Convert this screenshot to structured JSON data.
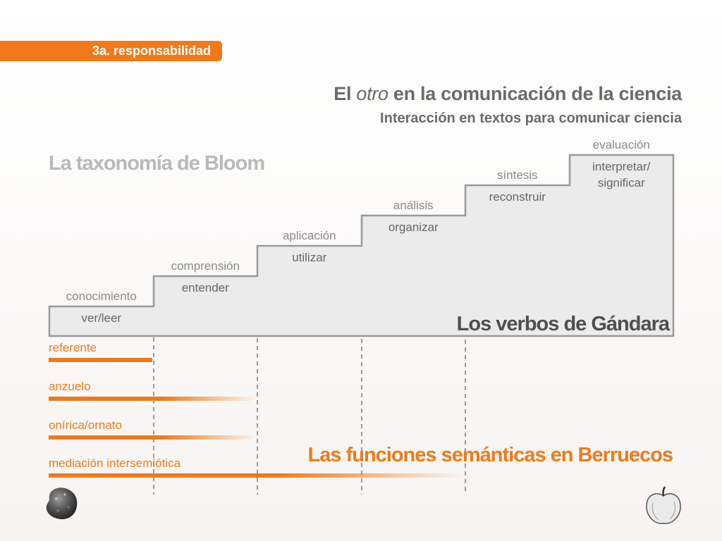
{
  "header": {
    "section_tab": "3a. responsabilidad",
    "title_prefix": "El ",
    "title_em": "otro",
    "title_suffix": " en la comunicación de la ciencia",
    "subtitle": "Interacción en textos para comunicar ciencia"
  },
  "diagram": {
    "bloom_label": "La taxonomía de Bloom",
    "gandara_label": "Los verbos de Gándara",
    "berrueco_label": "Las funciones semánticas en Berruecos",
    "levels": [
      {
        "name": "conocimiento",
        "verb": "ver/leer"
      },
      {
        "name": "comprensión",
        "verb": "entender"
      },
      {
        "name": "aplicación",
        "verb": "utilizar"
      },
      {
        "name": "análisis",
        "verb": "organizar"
      },
      {
        "name": "síntesis",
        "verb": "reconstruir"
      },
      {
        "name": "evaluación",
        "verb": "interpretar/\nsignificar"
      }
    ],
    "functions": [
      {
        "label": "referente",
        "span_levels": 1
      },
      {
        "label": "anzuelo",
        "span_levels": 2
      },
      {
        "label": "onírica/ornato",
        "span_levels": 2
      },
      {
        "label": "mediación intersemiótica",
        "span_levels": 4
      }
    ]
  },
  "colors": {
    "accent": "#f07a1a",
    "step_fill": "#ebebeb",
    "step_stroke": "#9a9a9a"
  },
  "icons": {
    "left": "rock-icon",
    "right": "apple-icon"
  }
}
